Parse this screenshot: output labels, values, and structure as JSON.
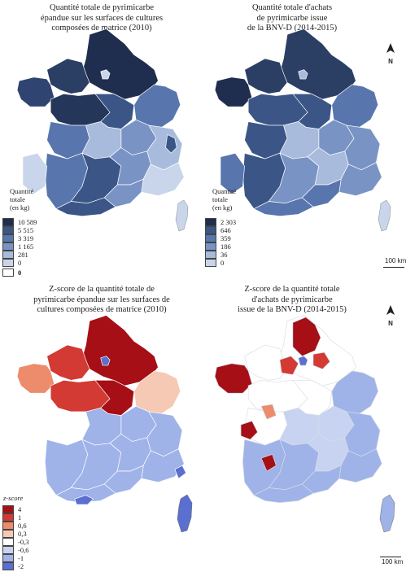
{
  "panels": {
    "top_left_title": [
      "Quantité totale de pyrimicarbe",
      "épandue sur les surfaces de cultures",
      "composées de matrice (2010)"
    ],
    "top_right_title": [
      "Quantité totale d'achats",
      "de pyrimicarbe issue",
      "de la BNV-D (2014-2015)"
    ],
    "bottom_left_title": [
      "Z-score de la quantité totale de",
      "pyrimicarbe épandue sur les surfaces de",
      "cultures composées de matrice (2010)"
    ],
    "bottom_right_title": [
      "Z-score de la quantité totale",
      "d'achats de pyrimicarbe",
      "issue de la BNV-D (2014-2015)"
    ]
  },
  "legend_left": {
    "title": [
      "Quantité",
      "totale",
      "(en kg)"
    ],
    "labels": [
      "10 589",
      "5 515",
      "3 319",
      "1 165",
      "281",
      "0",
      "0"
    ],
    "colors": [
      "#1f2d4e",
      "#3b5686",
      "#5876ad",
      "#7993c5",
      "#a8bbdc",
      "#c9d5ea",
      "#ffffff"
    ]
  },
  "legend_right": {
    "title": [
      "Quantité",
      "totale",
      "(en kg)"
    ],
    "labels": [
      "2 303",
      "646",
      "359",
      "186",
      "36",
      "0"
    ],
    "colors": [
      "#1f2d4e",
      "#3b5686",
      "#5876ad",
      "#7993c5",
      "#a8bbdc",
      "#c9d5ea"
    ]
  },
  "legend_z": {
    "title": "z-score",
    "labels": [
      "4",
      "1",
      "0,6",
      "0,3",
      "-0,3",
      "-0,6",
      "-1",
      "-2"
    ],
    "colors": [
      "#a50f15",
      "#d23a33",
      "#ec8c6c",
      "#f5c9b3",
      "#ffffff",
      "#c7d3f0",
      "#9fb3e8",
      "#5a6fcf"
    ]
  },
  "north_label": "N",
  "scale_label": "100 km",
  "icons": {
    "north": "north-arrow-icon"
  }
}
